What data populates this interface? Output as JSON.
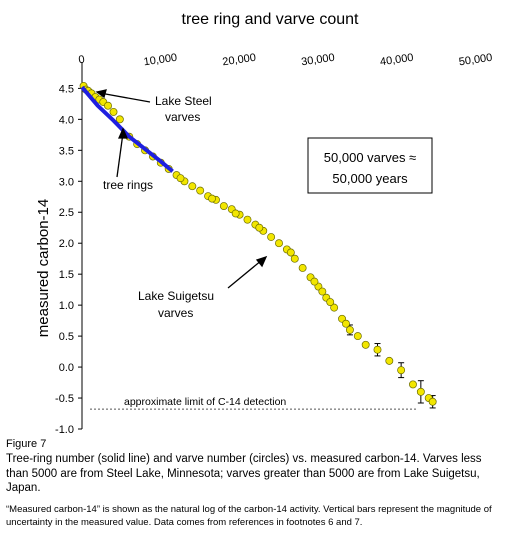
{
  "chart_data": {
    "type": "scatter",
    "title": "tree ring and varve count",
    "xlabel": "",
    "ylabel": "measured carbon-14",
    "x_ticks": [
      "0",
      "10,000",
      "20,000",
      "30,000",
      "40,000",
      "50,000"
    ],
    "y_ticks": [
      "4.5",
      "4.0",
      "3.5",
      "3.0",
      "2.5",
      "2.0",
      "1.5",
      "1.0",
      "0.5",
      "0.0",
      "-0.5",
      "-1.0"
    ],
    "xlim": [
      0,
      50000
    ],
    "ylim": [
      -1.0,
      4.7
    ],
    "x_axis_position": "top",
    "grid": false,
    "series": [
      {
        "name": "tree rings",
        "kind": "line",
        "color": "#1f1fe0",
        "points": [
          [
            0,
            4.52
          ],
          [
            2000,
            4.22
          ],
          [
            4000,
            3.98
          ],
          [
            6000,
            3.72
          ],
          [
            8000,
            3.52
          ],
          [
            10000,
            3.32
          ],
          [
            11500,
            3.16
          ]
        ]
      },
      {
        "name": "Lake Steel varves",
        "kind": "circles",
        "color": "#f2e600",
        "points": [
          [
            200,
            4.54
          ],
          [
            500,
            4.48
          ],
          [
            800,
            4.46
          ],
          [
            1200,
            4.42
          ],
          [
            1700,
            4.36
          ],
          [
            2200,
            4.32
          ],
          [
            2700,
            4.28
          ],
          [
            3300,
            4.22
          ],
          [
            4000,
            4.12
          ],
          [
            4800,
            4.0
          ]
        ]
      },
      {
        "name": "Lake Suigetsu varves",
        "kind": "circles",
        "color": "#f2e600",
        "points": [
          [
            6000,
            3.72
          ],
          [
            7000,
            3.6
          ],
          [
            8000,
            3.5
          ],
          [
            9000,
            3.4
          ],
          [
            10000,
            3.3
          ],
          [
            11000,
            3.2
          ],
          [
            12000,
            3.1
          ],
          [
            13000,
            3.0
          ],
          [
            14000,
            2.92
          ],
          [
            15000,
            2.85
          ],
          [
            16000,
            2.76
          ],
          [
            17000,
            2.7
          ],
          [
            18000,
            2.6
          ],
          [
            19000,
            2.55
          ],
          [
            20000,
            2.46
          ],
          [
            21000,
            2.38
          ],
          [
            22000,
            2.3
          ],
          [
            23000,
            2.2
          ],
          [
            24000,
            2.1
          ],
          [
            25000,
            2.0
          ],
          [
            26000,
            1.9
          ],
          [
            27000,
            1.75
          ],
          [
            28000,
            1.6
          ],
          [
            29000,
            1.45
          ],
          [
            30000,
            1.3
          ],
          [
            31000,
            1.12
          ],
          [
            32000,
            0.96
          ],
          [
            33000,
            0.78
          ],
          [
            34000,
            0.6
          ],
          [
            35000,
            0.5
          ],
          [
            36000,
            0.36
          ],
          [
            37500,
            0.28
          ],
          [
            39000,
            0.1
          ],
          [
            40500,
            -0.05
          ],
          [
            42000,
            -0.28
          ],
          [
            43000,
            -0.4
          ],
          [
            44000,
            -0.5
          ],
          [
            44500,
            -0.56
          ],
          [
            12500,
            3.05
          ],
          [
            16500,
            2.72
          ],
          [
            19500,
            2.48
          ],
          [
            22500,
            2.25
          ],
          [
            26500,
            1.85
          ],
          [
            29500,
            1.38
          ],
          [
            30500,
            1.22
          ],
          [
            31500,
            1.05
          ],
          [
            33500,
            0.7
          ]
        ]
      }
    ],
    "error_bars": [
      {
        "x": 34000,
        "y": 0.6,
        "err": 0.08
      },
      {
        "x": 37500,
        "y": 0.28,
        "err": 0.1
      },
      {
        "x": 40500,
        "y": -0.05,
        "err": 0.12
      },
      {
        "x": 43000,
        "y": -0.4,
        "err": 0.18
      },
      {
        "x": 44500,
        "y": -0.56,
        "err": 0.1
      }
    ],
    "reference_line": {
      "y": -0.68,
      "label": "approximate limit of C-14 detection"
    },
    "annotations": {
      "lake_steel": {
        "line1": "Lake Steel",
        "line2": "varves"
      },
      "tree_rings": "tree rings",
      "suigetsu": {
        "line1": "Lake Suigetsu",
        "line2": "varves"
      },
      "box": {
        "line1": "50,000 varves ≈",
        "line2": "50,000 years"
      }
    }
  },
  "figure_label": "Figure 7",
  "caption": "Tree-ring number (solid line) and varve number (circles) vs. measured carbon-14. Varves less than 5000 are from Steel Lake, Minnesota; varves greater than 5000 are from Lake Suigetsu, Japan.",
  "footnote": "“Measured carbon-14” is shown as the natural log of the carbon-14 activity. Vertical bars represent the magnitude of uncertainty in the measured value. Data comes from references in footnotes 6 and 7."
}
